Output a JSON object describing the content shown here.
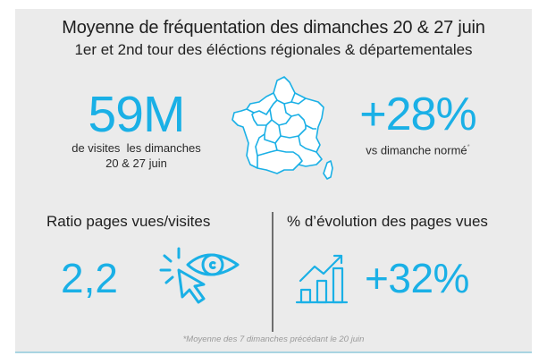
{
  "header": {
    "title": "Moyenne de fréquentation des dimanches 20 & 27 juin",
    "subtitle": "1er et 2nd tour des éléctions régionales & départementales"
  },
  "visits": {
    "value": "59M",
    "caption_line1": "de visites  les dimanches",
    "caption_line2": "20 & 27 juin"
  },
  "map": {
    "icon": "france-regions-map-icon"
  },
  "growth": {
    "value": "+28%",
    "caption": "vs dimanche normé",
    "footnote_mark": "*"
  },
  "ratio": {
    "heading": "Ratio pages vues/visites",
    "value": "2,2",
    "icon": "eye-click-icon"
  },
  "pageviews": {
    "heading": "% d’évolution des pages vues",
    "value": "+32%",
    "icon": "growth-bar-chart-icon"
  },
  "footnote": "*Moyenne des 7 dimanches précédant le 20 juin",
  "colors": {
    "accent": "#1ab0e6",
    "panel": "#ebebeb",
    "text": "#1e1e1e",
    "rule": "#a9d4e2"
  }
}
